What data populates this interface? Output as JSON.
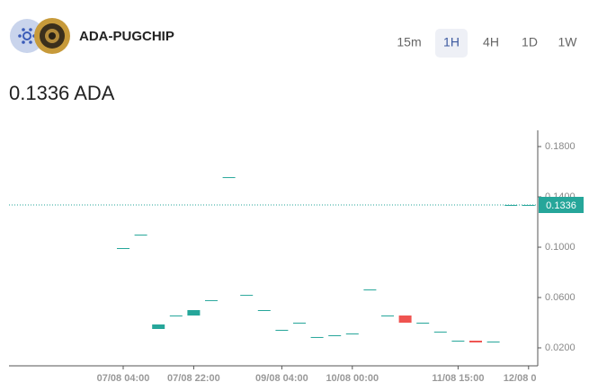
{
  "header": {
    "pair": "ADA-PUGCHIP",
    "timeframes": [
      "15m",
      "1H",
      "4H",
      "1D",
      "1W"
    ],
    "price": "0.1336 ADA"
  },
  "chart_data": {
    "type": "candlestick",
    "categories": [
      "07/08 04:00",
      null,
      null,
      null,
      "07/08 22:00",
      null,
      null,
      null,
      null,
      "09/08 04:00",
      null,
      null,
      null,
      "10/08 00:00",
      null,
      null,
      null,
      null,
      null,
      "11/08 15:00",
      null,
      null,
      null,
      "12/08 0"
    ],
    "open": [
      0.0993,
      0.11,
      0.035,
      0.0457,
      0.0457,
      0.0579,
      0.1557,
      0.0621,
      0.05,
      0.0343,
      0.04,
      0.0286,
      0.03,
      0.0314,
      0.0664,
      0.0457,
      0.0457,
      0.04,
      0.0329,
      0.0257,
      0.0257,
      0.025,
      0.1336,
      0.1336
    ],
    "close": [
      0.0993,
      0.11,
      0.0386,
      0.0457,
      0.05,
      0.0579,
      0.1557,
      0.0621,
      0.05,
      0.0343,
      0.04,
      0.0286,
      0.03,
      0.0314,
      0.0664,
      0.0457,
      0.04,
      0.04,
      0.0329,
      0.0257,
      0.0243,
      0.025,
      0.1336,
      0.1336
    ],
    "up_color": "#26a69a",
    "down_color": "#ef5350",
    "price_line": 0.1336,
    "ylim": [
      0.0057,
      0.1929
    ],
    "yticks": [
      {
        "value": 0.02,
        "label": "0.0200"
      },
      {
        "value": 0.06,
        "label": "0.0600"
      },
      {
        "value": 0.1,
        "label": "0.1000"
      },
      {
        "value": 0.14,
        "label": "0.1400"
      },
      {
        "value": 0.18,
        "label": "0.1800"
      }
    ]
  }
}
